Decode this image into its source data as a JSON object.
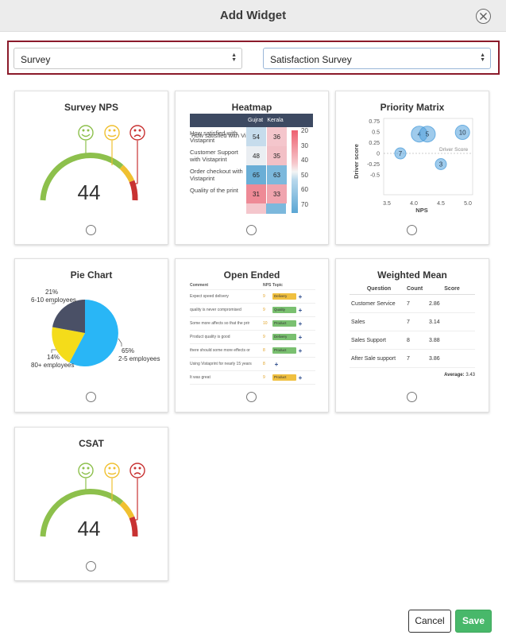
{
  "dialog": {
    "title": "Add Widget",
    "cancel_label": "Cancel",
    "save_label": "Save"
  },
  "filters": {
    "source": "Survey",
    "survey": "Satisfaction Survey"
  },
  "widgets": [
    {
      "title": "Survey NPS",
      "value": "44"
    },
    {
      "title": "Heatmap"
    },
    {
      "title": "Priority Matrix"
    },
    {
      "title": "Pie Chart"
    },
    {
      "title": "Open Ended"
    },
    {
      "title": "Weighted Mean"
    },
    {
      "title": "CSAT",
      "value": "44"
    }
  ],
  "heatmap": {
    "columns": [
      "Gujrat",
      "Kerala"
    ],
    "rows": [
      {
        "label": "How satisfied with Vistaprint",
        "values": [
          "54",
          "36"
        ],
        "colors": [
          "#c6dcec",
          "#f4c6cc"
        ]
      },
      {
        "label": "Customer Support with Vistaprint",
        "values": [
          "48",
          "35"
        ],
        "colors": [
          "#eaeef2",
          "#f2c0c6"
        ]
      },
      {
        "label": "Order checkout with Vistaprint",
        "values": [
          "65",
          "63"
        ],
        "colors": [
          "#6aaed6",
          "#7cb8dc"
        ]
      },
      {
        "label": "Quality of the print",
        "values": [
          "31",
          "33"
        ],
        "colors": [
          "#ee8a96",
          "#f0a4ae"
        ]
      }
    ],
    "scale": [
      "20",
      "30",
      "40",
      "50",
      "60",
      "70"
    ]
  },
  "priority_matrix": {
    "xlabel": "NPS",
    "ylabel": "Driver score",
    "annotation": "Driver Score",
    "x_ticks": [
      "3.5",
      "4.0",
      "4.5",
      "5.0"
    ],
    "y_ticks": [
      "0.75",
      "0.5",
      "0.25",
      "0",
      "-0.25",
      "-0.5"
    ],
    "points": [
      {
        "label": "4",
        "x": 4.1,
        "y": 0.45
      },
      {
        "label": "5",
        "x": 4.25,
        "y": 0.45
      },
      {
        "label": "10",
        "x": 4.9,
        "y": 0.49
      },
      {
        "label": "7",
        "x": 3.75,
        "y": 0.0
      },
      {
        "label": "3",
        "x": 4.5,
        "y": -0.25
      }
    ]
  },
  "pie": {
    "slices": [
      {
        "pct": "65%",
        "label": "2-5 employees",
        "value": 65,
        "color": "#29b6f6"
      },
      {
        "pct": "14%",
        "label": "80+ employees",
        "value": 14,
        "color": "#f4dc1a"
      },
      {
        "pct": "21%",
        "label": "6-10 employees",
        "value": 21,
        "color": "#4a5066"
      }
    ]
  },
  "open_ended": {
    "headers": [
      "Comment",
      "NPS",
      "Topic"
    ],
    "rows": [
      {
        "comment": "Expect speed delivery",
        "nps": "9",
        "tag": "Delivery",
        "tag_color": "#f0c040"
      },
      {
        "comment": "quality is never compromised",
        "nps": "9",
        "tag": "Quality",
        "tag_color": "#7ac070"
      },
      {
        "comment": "Some more affects so that the prir",
        "nps": "10",
        "tag": "Product",
        "tag_color": "#7ac070"
      },
      {
        "comment": "Product quality is good",
        "nps": "9",
        "tag": "Delivery",
        "tag_color": "#7ac070"
      },
      {
        "comment": "there should some more effects or",
        "nps": "8",
        "tag": "Product",
        "tag_color": "#7ac070"
      },
      {
        "comment": "Using Vistaprint for nearly 15 years",
        "nps": "8",
        "tag": "",
        "tag_color": ""
      },
      {
        "comment": "It was great",
        "nps": "9",
        "tag": "Product",
        "tag_color": "#f0c040"
      }
    ]
  },
  "weighted_mean": {
    "headers": [
      "Question",
      "Count",
      "Score"
    ],
    "rows": [
      {
        "question": "Customer Service",
        "count": "7",
        "score": "2.86"
      },
      {
        "question": "Sales",
        "count": "7",
        "score": "3.14"
      },
      {
        "question": "Sales Support",
        "count": "8",
        "score": "3.88"
      },
      {
        "question": "After Sale support",
        "count": "7",
        "score": "3.86"
      }
    ],
    "average_label": "Average:",
    "average_value": "3.43"
  }
}
